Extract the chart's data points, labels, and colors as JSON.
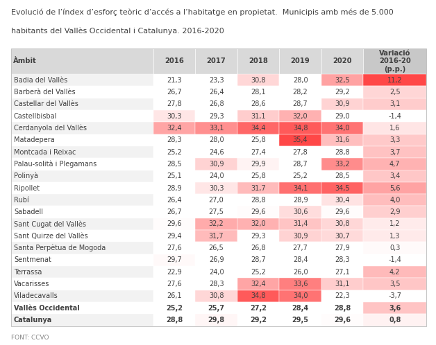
{
  "title_line1": "Evolució de l’índex d’esforç teòric d’accés a l’habitatge en propietat.  Municipis amb més de 5.000",
  "title_line2": "habitants del Vallès Occidental i Catalunya. 2016-2020",
  "columns": [
    "Àmbit",
    "2016",
    "2017",
    "2018",
    "2019",
    "2020",
    "Variació\n2016-20\n(p.p.)"
  ],
  "rows": [
    [
      "Badia del Vallès",
      21.3,
      23.3,
      30.8,
      28.0,
      32.5,
      11.2
    ],
    [
      "Barberà del Vallès",
      26.7,
      26.4,
      28.1,
      28.2,
      29.2,
      2.5
    ],
    [
      "Castellar del Vallès",
      27.8,
      26.8,
      28.6,
      28.7,
      30.9,
      3.1
    ],
    [
      "Castellbisbal",
      30.3,
      29.3,
      31.1,
      32.0,
      29.0,
      -1.4
    ],
    [
      "Cerdanyola del Vallès",
      32.4,
      33.1,
      34.4,
      34.8,
      34.0,
      1.6
    ],
    [
      "Matadepera",
      28.3,
      28.0,
      25.8,
      35.4,
      31.6,
      3.3
    ],
    [
      "Montcada i Reixac",
      25.2,
      24.6,
      27.4,
      27.8,
      28.8,
      3.7
    ],
    [
      "Palau-solità i Plegamans",
      28.5,
      30.9,
      29.9,
      28.7,
      33.2,
      4.7
    ],
    [
      "Polinyà",
      25.1,
      24.0,
      25.8,
      25.2,
      28.5,
      3.4
    ],
    [
      "Ripollet",
      28.9,
      30.3,
      31.7,
      34.1,
      34.5,
      5.6
    ],
    [
      "Rubí",
      26.4,
      27.0,
      28.8,
      28.9,
      30.4,
      4.0
    ],
    [
      "Sabadell",
      26.7,
      27.5,
      29.6,
      30.6,
      29.6,
      2.9
    ],
    [
      "Sant Cugat del Vallès",
      29.6,
      32.2,
      32.0,
      31.4,
      30.8,
      1.2
    ],
    [
      "Sant Quirze del Vallès",
      29.4,
      31.7,
      29.3,
      30.9,
      30.7,
      1.3
    ],
    [
      "Santa Perpètua de Mogoda",
      27.6,
      26.5,
      26.8,
      27.7,
      27.9,
      0.3
    ],
    [
      "Sentmenat",
      29.7,
      26.9,
      28.7,
      28.4,
      28.3,
      -1.4
    ],
    [
      "Terrassa",
      22.9,
      24.0,
      25.2,
      26.0,
      27.1,
      4.2
    ],
    [
      "Vacarisses",
      27.6,
      28.3,
      32.4,
      33.6,
      31.1,
      3.5
    ],
    [
      "Viladecavalls",
      26.1,
      30.8,
      34.8,
      34.0,
      22.3,
      -3.7
    ],
    [
      "Vallès Occidental",
      25.2,
      25.7,
      27.2,
      28.4,
      28.8,
      3.6
    ],
    [
      "Catalunya",
      28.8,
      29.8,
      29.2,
      29.5,
      29.6,
      0.8
    ]
  ],
  "bold_rows": [
    19,
    20
  ],
  "header_bg": "#d9d9d9",
  "last_col_header_bg": "#c8c8c8",
  "row_alt_bg": "#f2f2f2",
  "row_white_bg": "#ffffff",
  "text_color": "#404040",
  "font_size": 7.2,
  "title_font_size": 8.0,
  "footer": "FONT: CCVO",
  "value_min": 21.3,
  "value_max": 35.4,
  "variation_min": -3.7,
  "variation_max": 11.2,
  "color_threshold": 29.5
}
